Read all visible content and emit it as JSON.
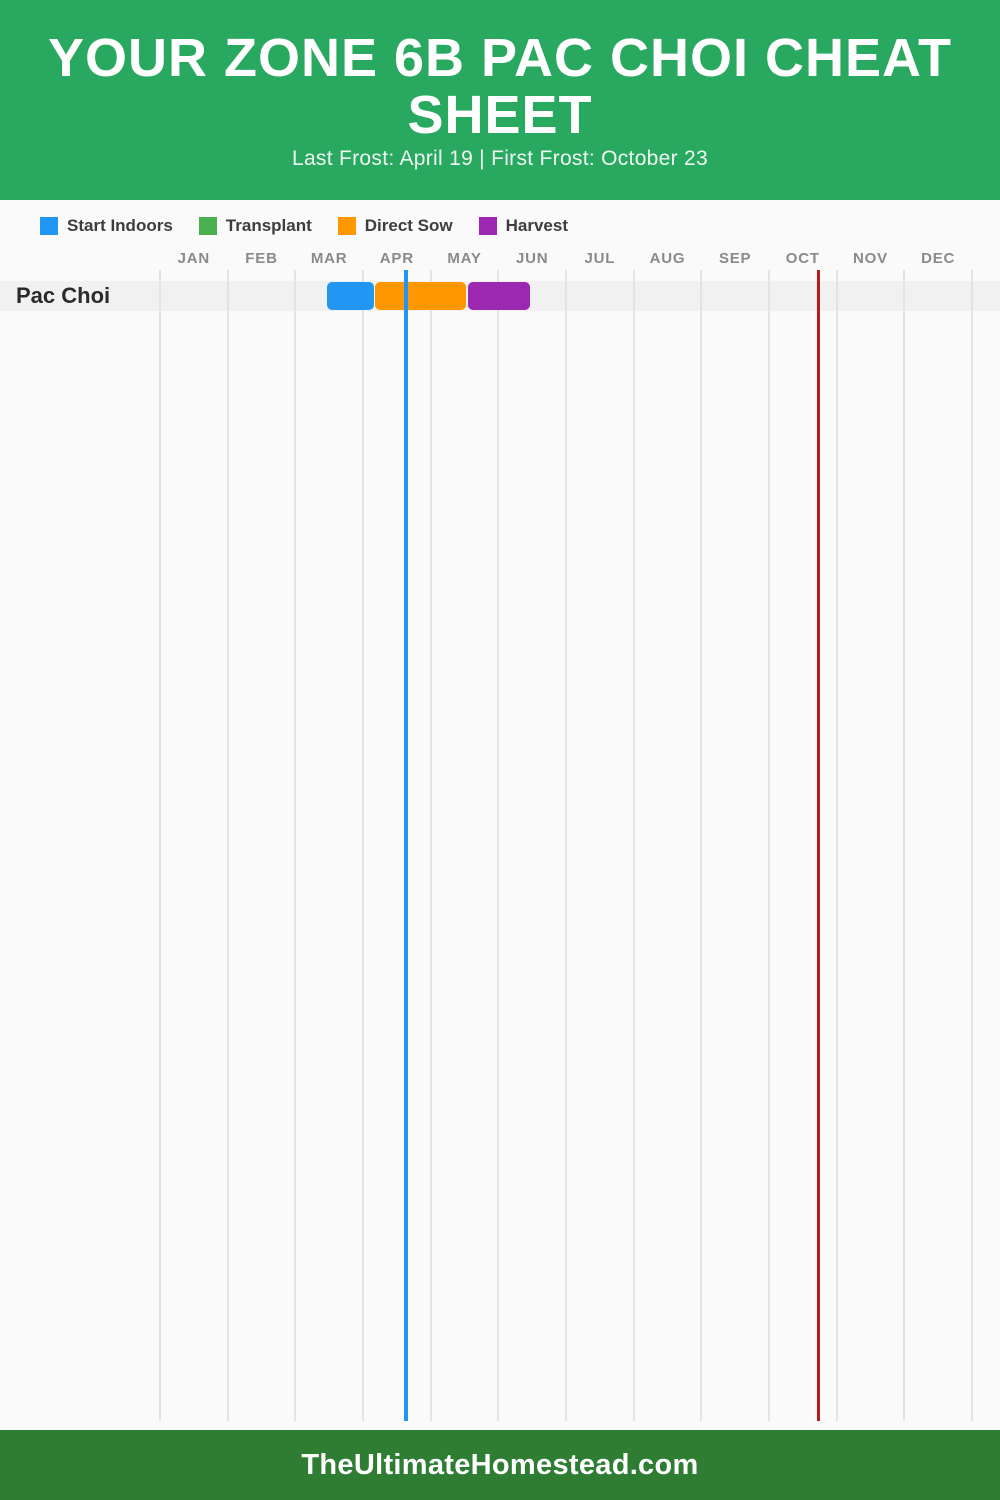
{
  "header": {
    "title": "YOUR ZONE 6B PAC CHOI CHEAT SHEET",
    "subtitle": "Last Frost: April 19 | First Frost: October 23",
    "background_color": "#28A95F"
  },
  "legend": {
    "items": [
      {
        "label": "Start Indoors",
        "color": "#2196F3"
      },
      {
        "label": "Transplant",
        "color": "#4CAF50"
      },
      {
        "label": "Direct Sow",
        "color": "#FF9800"
      },
      {
        "label": "Harvest",
        "color": "#9C27B0"
      }
    ]
  },
  "chart_data": {
    "type": "gantt",
    "title": "Zone 6B Pac Choi planting calendar",
    "months": [
      "JAN",
      "FEB",
      "MAR",
      "APR",
      "MAY",
      "JUN",
      "JUL",
      "AUG",
      "SEP",
      "OCT",
      "NOV",
      "DEC"
    ],
    "x_range_months": [
      0,
      12
    ],
    "grid": true,
    "rows": [
      {
        "label": "Pac Choi",
        "bars": [
          {
            "task": "Start Indoors",
            "color": "#2196F3",
            "start_month": 2.47,
            "end_month": 3.16,
            "approx_dates": "Mar 15 - Apr 5"
          },
          {
            "task": "Direct Sow",
            "color": "#FF9800",
            "start_month": 3.18,
            "end_month": 4.52,
            "approx_dates": "Apr 5 - May 16"
          },
          {
            "task": "Harvest",
            "color": "#9C27B0",
            "start_month": 4.55,
            "end_month": 5.47,
            "approx_dates": "May 17 - Jun 14"
          }
        ]
      }
    ],
    "frost_lines": [
      {
        "name": "last-frost",
        "date": "April 19",
        "color": "#2196F3",
        "month": 3.64,
        "line_width": 4
      },
      {
        "name": "first-frost",
        "date": "October 23",
        "color": "#B71C1C",
        "month": 9.73,
        "line_width": 3.5
      }
    ]
  },
  "footer": {
    "text": "TheUltimateHomestead.com",
    "background_color": "#2E7D32"
  }
}
